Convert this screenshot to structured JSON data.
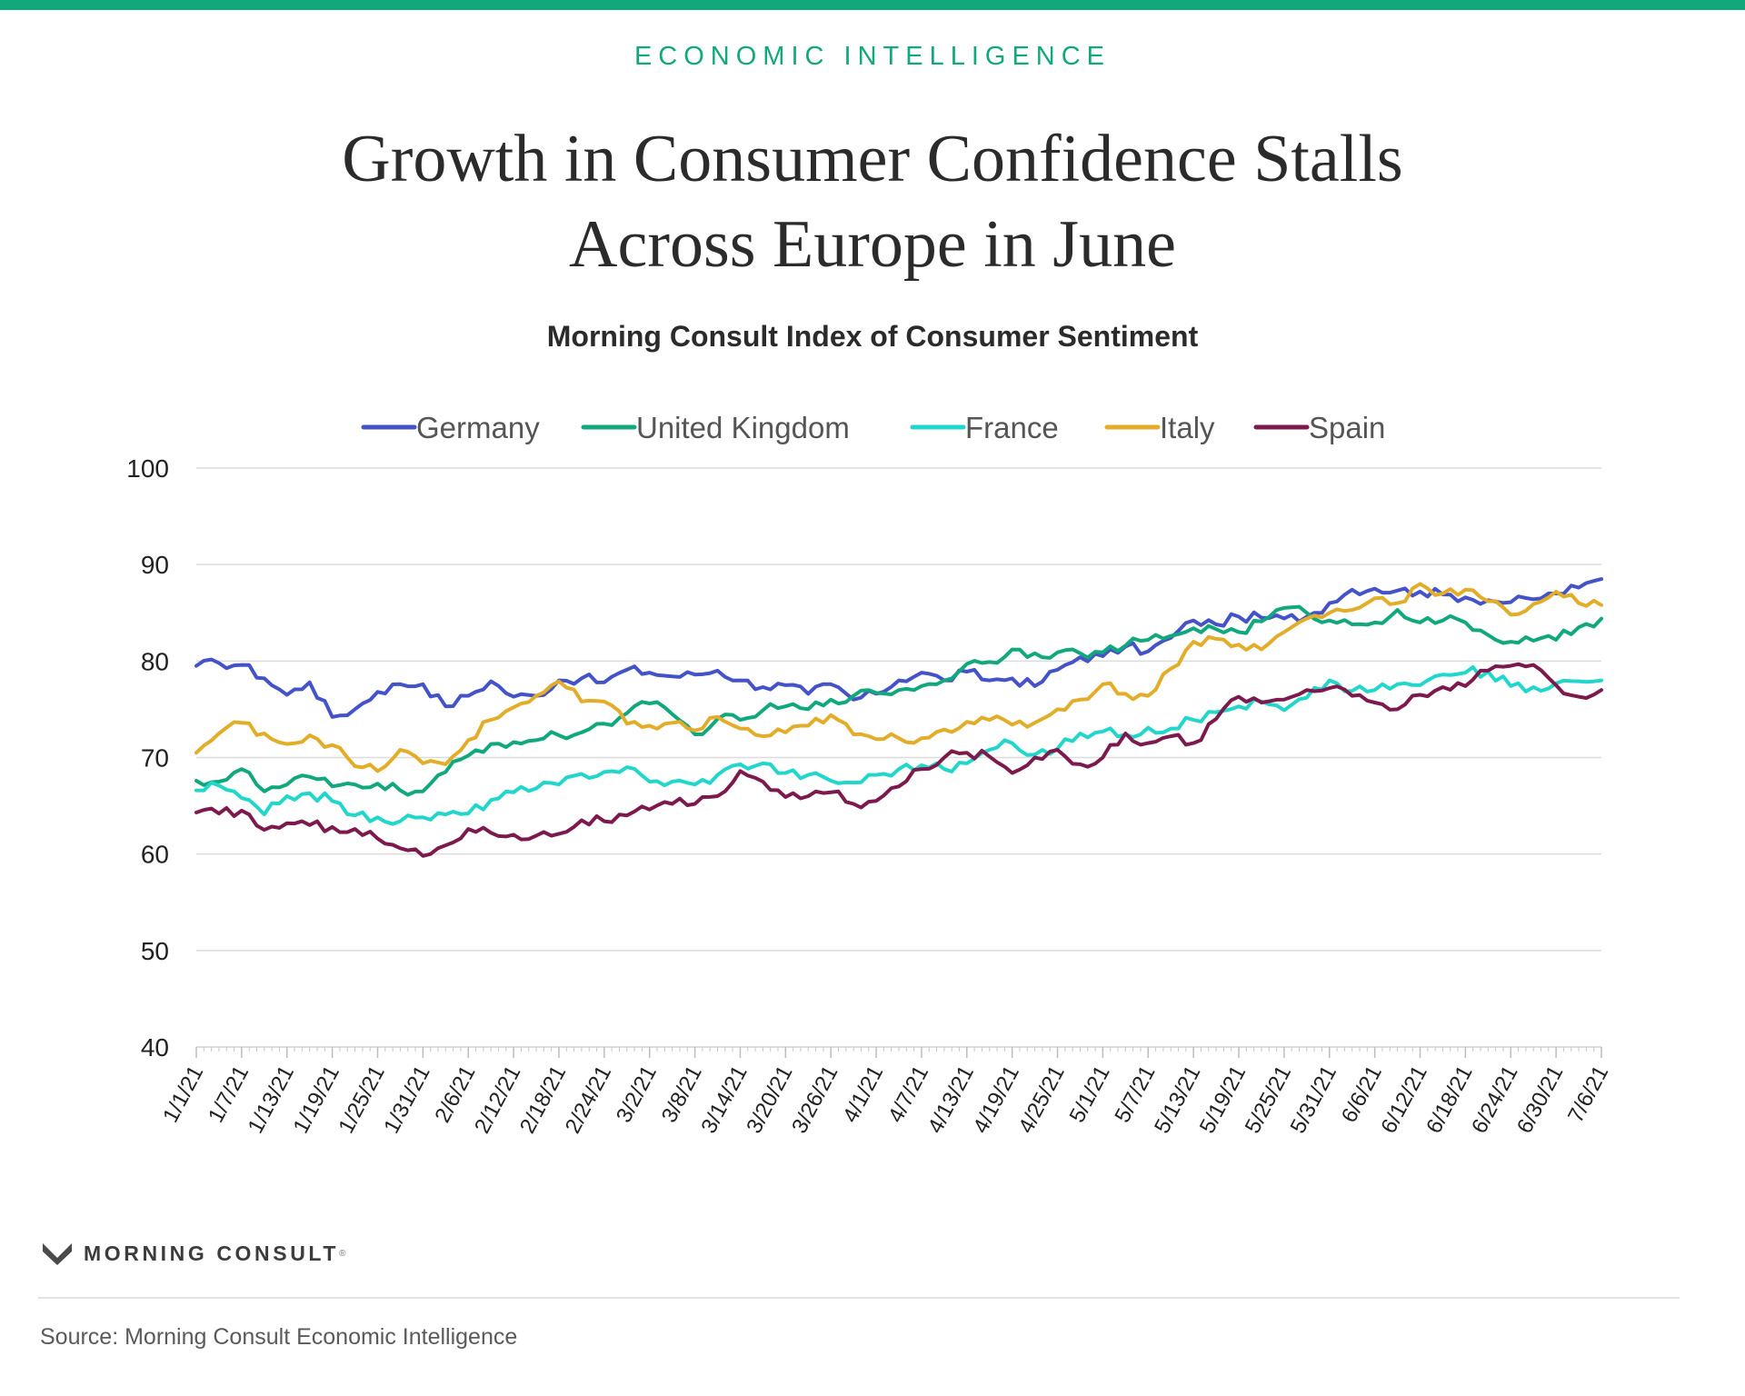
{
  "header": {
    "accent_color": "#12a87e",
    "kicker": "ECONOMIC INTELLIGENCE",
    "title_lines": [
      "Growth in Consumer Confidence Stalls",
      "Across Europe in June"
    ]
  },
  "footer": {
    "brand": "MORNING CONSULT",
    "brand_mark": "®",
    "source": "Source: Morning Consult Economic Intelligence"
  },
  "chart_data": {
    "type": "line",
    "title": "Morning Consult Index of Consumer Sentiment",
    "xlabel": "",
    "ylabel": "",
    "ylim": [
      40,
      100
    ],
    "yticks": [
      40,
      50,
      60,
      70,
      80,
      90,
      100
    ],
    "grid": "horizontal",
    "legend_position": "top-center",
    "x_start": "2021-01-01",
    "x_end": "2021-07-06",
    "x_ticks": [
      "1/1/21",
      "1/7/21",
      "1/13/21",
      "1/19/21",
      "1/25/21",
      "1/31/21",
      "2/6/21",
      "2/12/21",
      "2/18/21",
      "2/24/21",
      "3/2/21",
      "3/8/21",
      "3/14/21",
      "3/20/21",
      "3/26/21",
      "4/1/21",
      "4/7/21",
      "4/13/21",
      "4/19/21",
      "4/25/21",
      "5/1/21",
      "5/7/21",
      "5/13/21",
      "5/19/21",
      "5/25/21",
      "5/31/21",
      "6/6/21",
      "6/12/21",
      "6/18/21",
      "6/24/21",
      "6/30/21",
      "7/6/21"
    ],
    "x": [
      "1/1/21",
      "1/4/21",
      "1/7/21",
      "1/10/21",
      "1/13/21",
      "1/16/21",
      "1/19/21",
      "1/22/21",
      "1/25/21",
      "1/28/21",
      "1/31/21",
      "2/3/21",
      "2/6/21",
      "2/9/21",
      "2/12/21",
      "2/15/21",
      "2/18/21",
      "2/21/21",
      "2/24/21",
      "2/27/21",
      "3/2/21",
      "3/5/21",
      "3/8/21",
      "3/11/21",
      "3/14/21",
      "3/17/21",
      "3/20/21",
      "3/23/21",
      "3/26/21",
      "3/29/21",
      "4/1/21",
      "4/4/21",
      "4/7/21",
      "4/10/21",
      "4/13/21",
      "4/16/21",
      "4/19/21",
      "4/22/21",
      "4/25/21",
      "4/28/21",
      "5/1/21",
      "5/4/21",
      "5/7/21",
      "5/10/21",
      "5/13/21",
      "5/16/21",
      "5/19/21",
      "5/22/21",
      "5/25/21",
      "5/28/21",
      "5/31/21",
      "6/3/21",
      "6/6/21",
      "6/9/21",
      "6/12/21",
      "6/15/21",
      "6/18/21",
      "6/21/21",
      "6/24/21",
      "6/27/21",
      "6/30/21",
      "7/3/21",
      "7/6/21"
    ],
    "series": [
      {
        "name": "Germany",
        "color": "#4453c7",
        "values": [
          79.5,
          79.8,
          79.6,
          78.2,
          76.5,
          77.8,
          74.2,
          75.0,
          76.8,
          77.6,
          77.6,
          75.3,
          76.4,
          77.9,
          76.3,
          76.4,
          78.0,
          78.2,
          77.8,
          79.1,
          78.8,
          78.4,
          78.6,
          79.0,
          78.0,
          77.3,
          77.5,
          76.6,
          77.6,
          76.0,
          76.6,
          78.0,
          78.8,
          78.0,
          78.9,
          78.0,
          78.2,
          77.4,
          79.1,
          80.4,
          80.5,
          81.5,
          81.0,
          82.4,
          84.2,
          83.8,
          84.6,
          84.5,
          84.4,
          84.6,
          86.0,
          87.4,
          87.5,
          87.3,
          87.2,
          86.9,
          86.6,
          86.3,
          86.1,
          86.4,
          87.0,
          87.6,
          88.5
        ]
      },
      {
        "name": "United Kingdom",
        "color": "#12a87e",
        "values": [
          67.6,
          67.5,
          68.8,
          66.5,
          67.2,
          68.0,
          67.0,
          67.2,
          67.3,
          66.6,
          66.5,
          68.5,
          70.2,
          71.4,
          71.6,
          71.8,
          72.3,
          72.6,
          73.5,
          74.6,
          75.6,
          74.5,
          72.4,
          74.0,
          73.9,
          74.9,
          75.3,
          75.0,
          76.0,
          76.4,
          76.7,
          77.0,
          77.4,
          78.0,
          79.7,
          79.9,
          81.2,
          80.8,
          80.9,
          80.8,
          80.9,
          81.6,
          82.2,
          82.6,
          83.4,
          83.3,
          83.0,
          84.1,
          85.5,
          85.0,
          84.2,
          83.8,
          84.0,
          85.3,
          84.0,
          84.2,
          84.0,
          82.7,
          82.0,
          82.1,
          82.2,
          83.5,
          84.4
        ]
      },
      {
        "name": "France",
        "color": "#22d6cb",
        "values": [
          66.6,
          67.1,
          65.8,
          64.1,
          66.0,
          66.3,
          65.5,
          64.0,
          63.8,
          63.4,
          63.8,
          64.1,
          64.2,
          65.6,
          66.4,
          66.8,
          67.2,
          68.3,
          68.5,
          69.0,
          67.5,
          67.5,
          67.2,
          68.2,
          69.3,
          69.4,
          68.4,
          68.2,
          67.6,
          67.4,
          68.2,
          68.8,
          69.2,
          68.8,
          69.4,
          70.8,
          71.5,
          70.3,
          70.9,
          72.5,
          72.7,
          72.4,
          73.1,
          73.0,
          73.9,
          74.7,
          75.3,
          75.8,
          74.9,
          76.2,
          78.0,
          76.9,
          77.0,
          77.6,
          77.5,
          78.6,
          78.8,
          78.9,
          77.4,
          77.3,
          77.7,
          77.9,
          78.0
        ]
      },
      {
        "name": "Italy",
        "color": "#e2ae2a",
        "values": [
          70.5,
          72.5,
          73.6,
          72.5,
          71.4,
          72.3,
          71.3,
          69.1,
          68.6,
          70.8,
          69.4,
          69.3,
          71.8,
          73.9,
          75.2,
          76.4,
          77.9,
          75.8,
          75.8,
          73.5,
          73.3,
          73.6,
          72.8,
          74.2,
          73.0,
          72.2,
          72.6,
          73.3,
          74.4,
          72.4,
          71.9,
          72.0,
          72.0,
          72.9,
          73.7,
          73.9,
          73.4,
          73.6,
          75.0,
          76.0,
          77.6,
          76.6,
          76.4,
          79.2,
          82.0,
          82.3,
          81.7,
          81.2,
          83.0,
          84.4,
          85.0,
          85.3,
          86.5,
          86.0,
          88.0,
          87.0,
          87.4,
          86.2,
          84.8,
          85.9,
          87.2,
          86.0,
          85.8
        ]
      },
      {
        "name": "Spain",
        "color": "#7c1a4e",
        "values": [
          64.3,
          64.2,
          64.5,
          62.5,
          63.2,
          63.0,
          62.8,
          62.6,
          61.6,
          60.6,
          59.8,
          60.9,
          62.6,
          62.2,
          62.0,
          61.9,
          62.1,
          63.5,
          63.4,
          64.0,
          64.6,
          65.2,
          65.2,
          66.0,
          68.6,
          67.5,
          65.9,
          66.0,
          66.4,
          65.2,
          65.5,
          67.0,
          68.8,
          70.0,
          70.5,
          70.1,
          68.4,
          70.0,
          70.8,
          69.3,
          70.0,
          72.5,
          71.5,
          72.2,
          71.5,
          74.0,
          76.3,
          75.7,
          76.0,
          77.0,
          77.2,
          76.4,
          75.7,
          75.0,
          76.5,
          77.3,
          77.4,
          79.0,
          79.5,
          79.6,
          77.5,
          76.3,
          77.0
        ]
      }
    ]
  }
}
